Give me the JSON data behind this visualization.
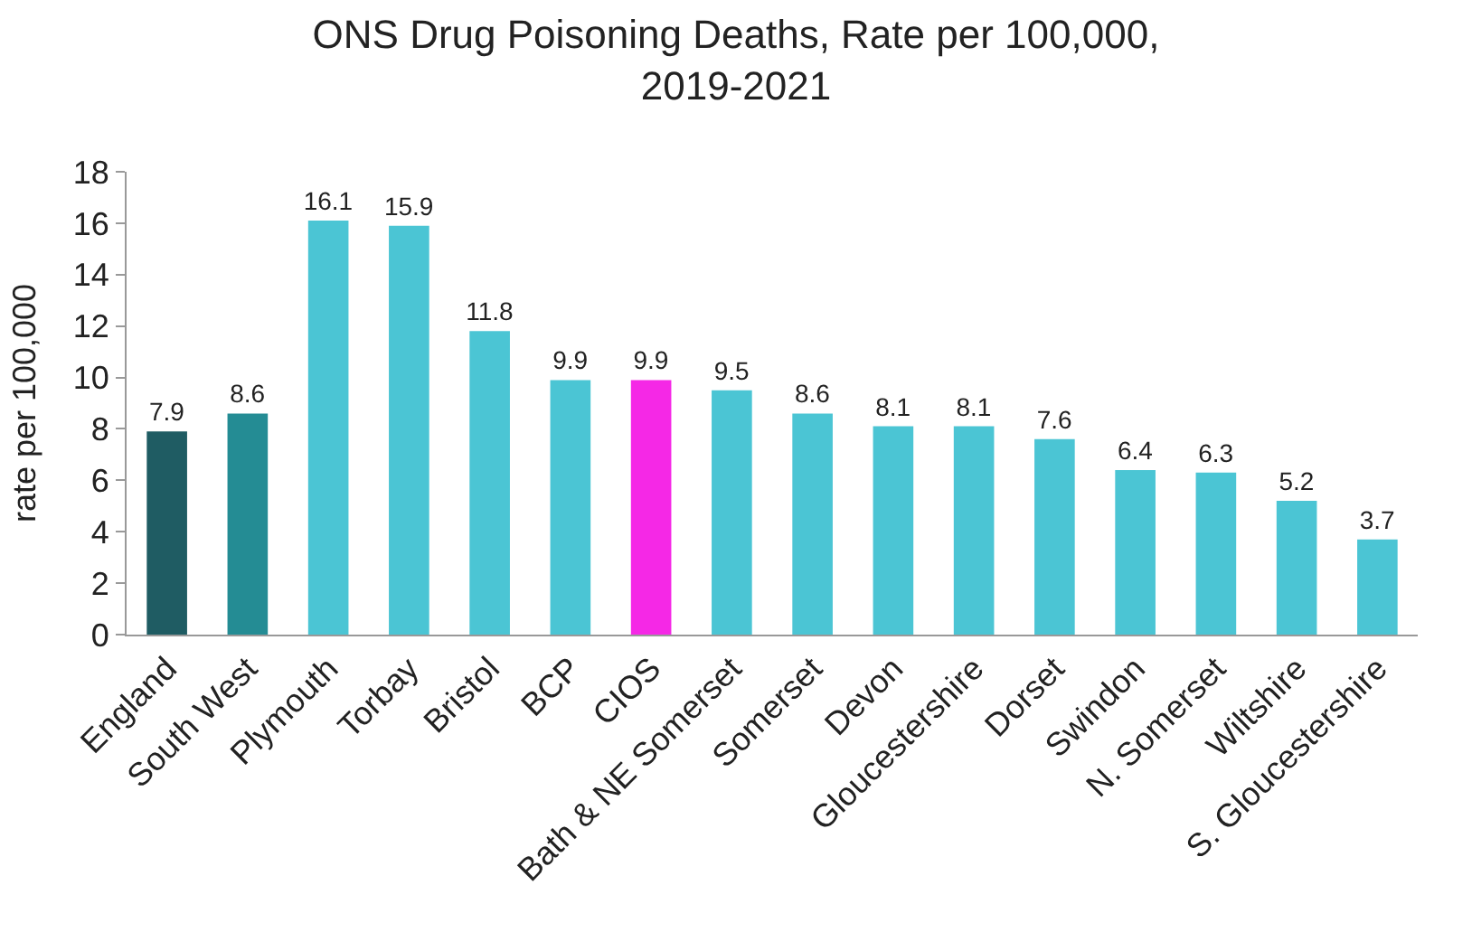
{
  "chart_data": {
    "type": "bar",
    "title": "ONS Drug Poisoning Deaths, Rate per 100,000, 2019-2021",
    "ylabel": "rate per 100,000",
    "categories": [
      "England",
      "South West",
      "Plymouth",
      "Torbay",
      "Bristol",
      "BCP",
      "CIOS",
      "Bath & NE Somerset",
      "Somerset",
      "Devon",
      "Gloucestershire",
      "Dorset",
      "Swindon",
      "N. Somerset",
      "Wiltshire",
      "S. Gloucestershire"
    ],
    "values": [
      7.9,
      8.6,
      16.1,
      15.9,
      11.8,
      9.9,
      9.9,
      9.5,
      8.6,
      8.1,
      8.1,
      7.6,
      6.4,
      6.3,
      5.2,
      3.7
    ],
    "colors": [
      "#1f5c63",
      "#248c94",
      "#4bc5d4",
      "#4bc5d4",
      "#4bc5d4",
      "#4bc5d4",
      "#f528e6",
      "#4bc5d4",
      "#4bc5d4",
      "#4bc5d4",
      "#4bc5d4",
      "#4bc5d4",
      "#4bc5d4",
      "#4bc5d4",
      "#4bc5d4",
      "#4bc5d4"
    ],
    "ylim": [
      0,
      18
    ],
    "yticks": [
      0,
      2,
      4,
      6,
      8,
      10,
      12,
      14,
      16,
      18
    ],
    "data_labels": true
  }
}
